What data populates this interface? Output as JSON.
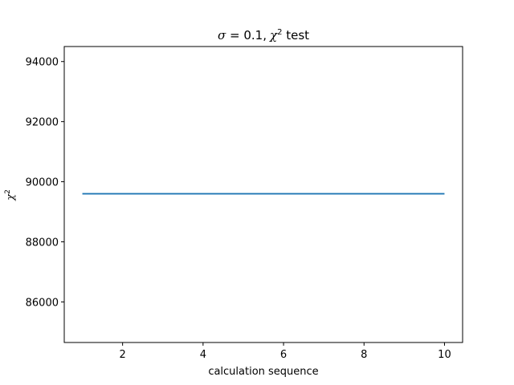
{
  "chart_data": {
    "type": "line",
    "title": {
      "sigma_symbol": "σ",
      "sigma_value": " = 0.1,",
      "chi_symbol": "χ",
      "chi_power": "2",
      "suffix": " test"
    },
    "xlabel": "calculation sequence",
    "ylabel": {
      "symbol": "χ",
      "power": "2"
    },
    "xlim": [
      0.55,
      10.45
    ],
    "ylim": [
      84650,
      94500
    ],
    "xticks": [
      2,
      4,
      6,
      8,
      10
    ],
    "yticks": [
      86000,
      88000,
      90000,
      92000,
      94000
    ],
    "series": [
      {
        "x": [
          1,
          2,
          3,
          4,
          5,
          6,
          7,
          8,
          9,
          10
        ],
        "y": [
          89600,
          89600,
          89600,
          89600,
          89600,
          89600,
          89600,
          89600,
          89600,
          89600
        ],
        "color": "#1f77b4"
      }
    ],
    "grid": false,
    "legend": "none"
  }
}
